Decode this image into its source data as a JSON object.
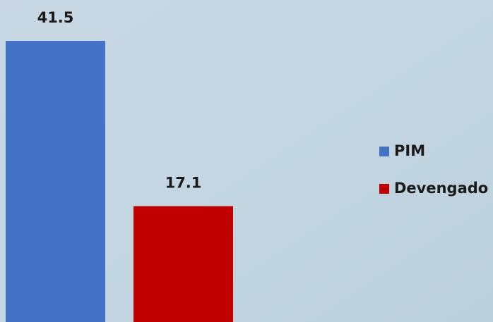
{
  "chart_data": {
    "type": "bar",
    "series": [
      {
        "name": "PIM",
        "color": "#4472c4",
        "values": [
          41.5
        ]
      },
      {
        "name": "Devengado",
        "color": "#c00000",
        "values": [
          17.1
        ]
      }
    ],
    "legend": "right"
  }
}
